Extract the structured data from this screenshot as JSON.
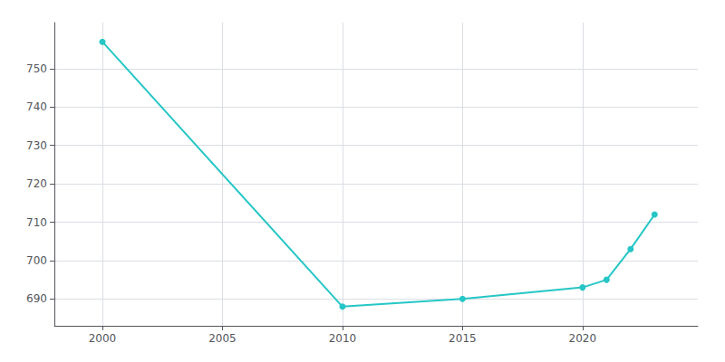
{
  "chart_data": {
    "type": "line",
    "x": [
      2000,
      2010,
      2015,
      2020,
      2021,
      2022,
      2023
    ],
    "values": [
      757,
      688,
      690,
      693,
      695,
      703,
      712
    ],
    "color": "#26c6c6",
    "marker": "circle",
    "xlim": [
      1998.0,
      2024.8
    ],
    "ylim": [
      683,
      762
    ],
    "xticks": [
      2000,
      2005,
      2010,
      2015,
      2020
    ],
    "yticks": [
      690,
      700,
      710,
      720,
      730,
      740,
      750
    ],
    "grid": true
  }
}
